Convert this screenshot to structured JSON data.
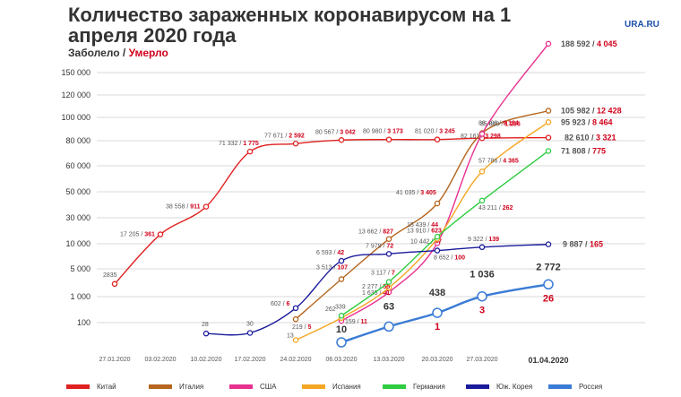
{
  "header": {
    "title": "Количество зараженных коронавирусом на 1 апреля 2020 года",
    "sick_label": "Заболело /",
    "died_label": "Умерло",
    "brand": "URA.RU"
  },
  "chart_data": {
    "type": "line",
    "title": "Количество зараженных коронавирусом на 1 апреля 2020 года",
    "xlabel": "",
    "ylabel": "",
    "y_ticks": [
      "100",
      "1 000",
      "5 000",
      "10 000",
      "30 000",
      "50 000",
      "60 000",
      "80 000",
      "100 000",
      "120 000",
      "150 000"
    ],
    "x_ticks": [
      "27.01.2020",
      "03.02.2020",
      "10.02.2020",
      "17.02.2020",
      "24.02.2020",
      "06.03.2020",
      "13.03.2020",
      "20.03.2020",
      "27.03.2020",
      "01.04.2020"
    ],
    "grid": true,
    "series": [
      {
        "name": "Китай",
        "color": "#e02020",
        "points": [
          [
            "27.01.2020",
            2835
          ],
          [
            "03.02.2020",
            17205
          ],
          [
            "10.02.2020",
            38558
          ],
          [
            "17.02.2020",
            71332
          ],
          [
            "24.02.2020",
            77671
          ],
          [
            "06.03.2020",
            80567
          ],
          [
            "13.03.2020",
            80980
          ],
          [
            "20.03.2020",
            81020
          ],
          [
            "27.03.2020",
            82161
          ],
          [
            "01.04.2020",
            82610
          ]
        ],
        "labels": [
          {
            "at": "27.01.2020",
            "cases": "2835",
            "deaths": ""
          },
          {
            "at": "03.02.2020",
            "cases": "17 205 /",
            "deaths": "361"
          },
          {
            "at": "10.02.2020",
            "cases": "38 558 /",
            "deaths": "911"
          },
          {
            "at": "17.02.2020",
            "cases": "71 332 /",
            "deaths": "1 775"
          },
          {
            "at": "24.02.2020",
            "cases": "77 671 /",
            "deaths": "2 592"
          },
          {
            "at": "06.03.2020",
            "cases": "80 567 /",
            "deaths": "3 042"
          },
          {
            "at": "13.03.2020",
            "cases": "80 980 /",
            "deaths": "3 173"
          },
          {
            "at": "20.03.2020",
            "cases": "81 020 /",
            "deaths": "3 245"
          },
          {
            "at": "27.03.2020",
            "cases": "82 161 /",
            "deaths": "3 298"
          },
          {
            "at": "01.04.2020",
            "cases": "82 610 /",
            "deaths": "3 321"
          }
        ]
      },
      {
        "name": "Италия",
        "color": "#b5651d",
        "points": [
          [
            "24.02.2020",
            219
          ],
          [
            "06.03.2020",
            3513
          ],
          [
            "13.03.2020",
            13662
          ],
          [
            "20.03.2020",
            41035
          ],
          [
            "27.03.2020",
            86498
          ],
          [
            "01.04.2020",
            105982
          ]
        ],
        "labels": [
          {
            "at": "24.02.2020",
            "cases": "219 /",
            "deaths": "5"
          },
          {
            "at": "06.03.2020",
            "cases": "3 513 /",
            "deaths": "107"
          },
          {
            "at": "13.03.2020",
            "cases": "13 662 /",
            "deaths": "827"
          },
          {
            "at": "20.03.2020",
            "cases": "41 035 /",
            "deaths": "3 405"
          },
          {
            "at": "27.03.2020",
            "cases": "86 498 /",
            "deaths": "9 134"
          },
          {
            "at": "01.04.2020",
            "cases": "105 982 /",
            "deaths": "12 428"
          }
        ]
      },
      {
        "name": "США",
        "color": "#e8308f",
        "points": [
          [
            "06.03.2020",
            159
          ],
          [
            "13.03.2020",
            1635
          ],
          [
            "20.03.2020",
            10442
          ],
          [
            "27.03.2020",
            85840
          ],
          [
            "01.04.2020",
            188592
          ]
        ],
        "labels": [
          {
            "at": "06.03.2020",
            "cases": "159 /",
            "deaths": "11"
          },
          {
            "at": "13.03.2020",
            "cases": "1 635 /",
            "deaths": "41"
          },
          {
            "at": "20.03.2020",
            "cases": "10 442 /",
            "deaths": "47"
          },
          {
            "at": "27.03.2020",
            "cases": "85 840 /",
            "deaths": "1 296"
          },
          {
            "at": "01.04.2020",
            "cases": "188 592 /",
            "deaths": "4 045"
          }
        ]
      },
      {
        "name": "Испания",
        "color": "#f5a623",
        "points": [
          [
            "24.02.2020",
            13
          ],
          [
            "06.03.2020",
            262
          ],
          [
            "13.03.2020",
            2277
          ],
          [
            "20.03.2020",
            13910
          ],
          [
            "27.03.2020",
            57786
          ],
          [
            "01.04.2020",
            95923
          ]
        ],
        "labels": [
          {
            "at": "24.02.2020",
            "cases": "13",
            "deaths": ""
          },
          {
            "at": "06.03.2020",
            "cases": "262",
            "deaths": ""
          },
          {
            "at": "13.03.2020",
            "cases": "2 277 /",
            "deaths": "55"
          },
          {
            "at": "20.03.2020",
            "cases": "13 910 /",
            "deaths": "623"
          },
          {
            "at": "27.03.2020",
            "cases": "57 786 /",
            "deaths": "4 365"
          },
          {
            "at": "01.04.2020",
            "cases": "95 923 /",
            "deaths": "8 464"
          }
        ]
      },
      {
        "name": "Германия",
        "color": "#2ecc40",
        "points": [
          [
            "06.03.2020",
            339
          ],
          [
            "13.03.2020",
            3117
          ],
          [
            "20.03.2020",
            15439
          ],
          [
            "27.03.2020",
            43211
          ],
          [
            "01.04.2020",
            71808
          ]
        ],
        "labels": [
          {
            "at": "06.03.2020",
            "cases": "339",
            "deaths": ""
          },
          {
            "at": "13.03.2020",
            "cases": "3 117 /",
            "deaths": "7"
          },
          {
            "at": "20.03.2020",
            "cases": "15 439 /",
            "deaths": "44"
          },
          {
            "at": "27.03.2020",
            "cases": "43 211 /",
            "deaths": "262"
          },
          {
            "at": "01.04.2020",
            "cases": "71 808 /",
            "deaths": "775"
          }
        ]
      },
      {
        "name": "Юж. Корея",
        "color": "#1a1a9c",
        "points": [
          [
            "10.02.2020",
            28
          ],
          [
            "17.02.2020",
            30
          ],
          [
            "24.02.2020",
            602
          ],
          [
            "06.03.2020",
            6593
          ],
          [
            "13.03.2020",
            7979
          ],
          [
            "20.03.2020",
            8652
          ],
          [
            "27.03.2020",
            9322
          ],
          [
            "01.04.2020",
            9887
          ]
        ],
        "labels": [
          {
            "at": "10.02.2020",
            "cases": "28",
            "deaths": ""
          },
          {
            "at": "17.02.2020",
            "cases": "30",
            "deaths": ""
          },
          {
            "at": "24.02.2020",
            "cases": "602 /",
            "deaths": "6"
          },
          {
            "at": "06.03.2020",
            "cases": "6 593 /",
            "deaths": "42"
          },
          {
            "at": "13.03.2020",
            "cases": "7 979 /",
            "deaths": "72"
          },
          {
            "at": "20.03.2020",
            "cases": "8 652 /",
            "deaths": "100"
          },
          {
            "at": "27.03.2020",
            "cases": "9 322 /",
            "deaths": "139"
          },
          {
            "at": "01.04.2020",
            "cases": "9 887 /",
            "deaths": "165"
          }
        ]
      },
      {
        "name": "Россия",
        "color": "#3a7bd5",
        "points": [
          [
            "06.03.2020",
            10
          ],
          [
            "13.03.2020",
            63
          ],
          [
            "20.03.2020",
            438
          ],
          [
            "27.03.2020",
            1036
          ],
          [
            "01.04.2020",
            2772
          ]
        ],
        "labels": [
          {
            "at": "06.03.2020",
            "cases": "10",
            "deaths": ""
          },
          {
            "at": "13.03.2020",
            "cases": "63",
            "deaths": ""
          },
          {
            "at": "20.03.2020",
            "cases": "438",
            "deaths": "1"
          },
          {
            "at": "27.03.2020",
            "cases": "1 036",
            "deaths": "3"
          },
          {
            "at": "01.04.2020",
            "cases": "2 772",
            "deaths": "26"
          }
        ]
      }
    ]
  }
}
